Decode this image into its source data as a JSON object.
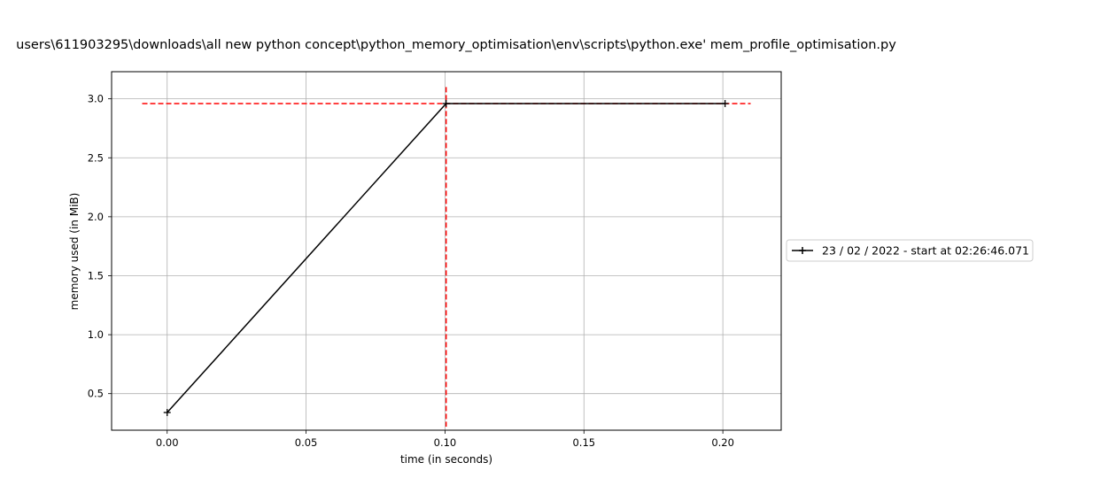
{
  "chart_data": {
    "type": "line",
    "title": "users\\611903295\\downloads\\all new python concept\\python_memory_optimisation\\env\\scripts\\python.exe' mem_profile_optimisation.py",
    "xlabel": "time (in seconds)",
    "ylabel": "memory used (in MiB)",
    "xlim": [
      -0.02,
      0.221
    ],
    "ylim": [
      0.19,
      3.23
    ],
    "x_ticks": [
      "0.00",
      "0.05",
      "0.10",
      "0.15",
      "0.20"
    ],
    "x_tick_values": [
      0.0,
      0.05,
      0.1,
      0.15,
      0.2
    ],
    "y_ticks": [
      "0.5",
      "1.0",
      "1.5",
      "2.0",
      "2.5",
      "3.0"
    ],
    "y_tick_values": [
      0.5,
      1.0,
      1.5,
      2.0,
      2.5,
      3.0
    ],
    "grid": true,
    "legend_position": "center-right outside",
    "series": [
      {
        "name": "23 / 02 / 2022 - start at 02:26:46.071",
        "color": "#000000",
        "marker": "+",
        "x": [
          0.0,
          0.1004,
          0.2008
        ],
        "y": [
          0.34,
          2.96,
          2.96
        ]
      }
    ],
    "reference_lines": {
      "color": "#ff0000",
      "style": "dashed",
      "horizontal": {
        "y": 2.96,
        "x_range": [
          -0.009,
          0.21
        ]
      },
      "vertical": {
        "x": 0.1004,
        "y_range": [
          0.22,
          3.1
        ]
      }
    }
  }
}
